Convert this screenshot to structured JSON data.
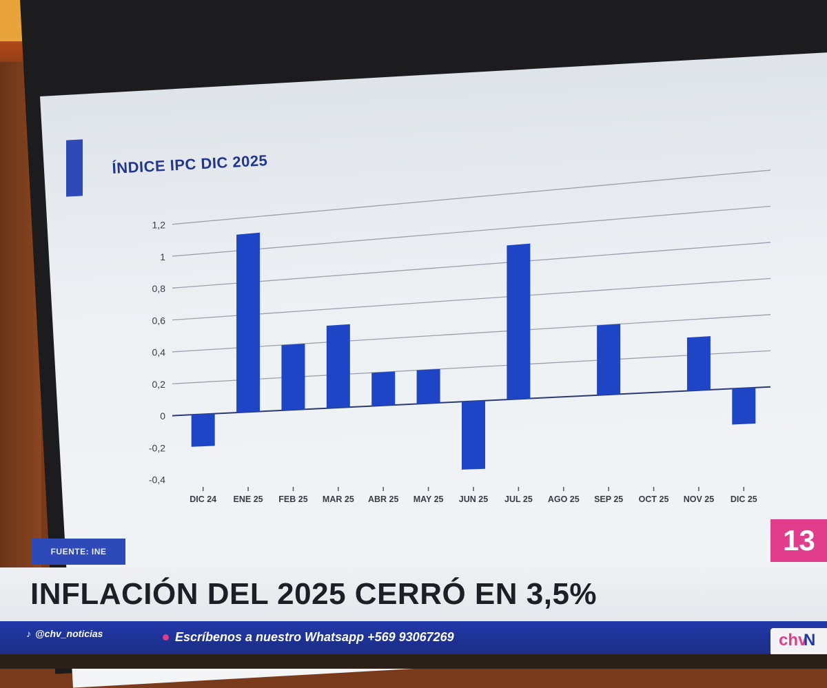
{
  "chart_data": {
    "type": "bar",
    "title": "ÍNDICE IPC DIC 2025",
    "categories": [
      "DIC 24",
      "ENE 25",
      "FEB 25",
      "MAR 25",
      "ABR 25",
      "MAY 25",
      "JUN 25",
      "JUL 25",
      "AGO 25",
      "SEP 25",
      "OCT 25",
      "NOV 25",
      "DIC 25"
    ],
    "values": [
      -0.2,
      1.1,
      0.4,
      0.5,
      0.2,
      0.2,
      -0.4,
      0.9,
      0.0,
      0.4,
      0.0,
      0.3,
      -0.2
    ],
    "y_ticks": [
      "1,2",
      "1",
      "0,8",
      "0,6",
      "0,4",
      "0,2",
      "0",
      "-0,2",
      "-0,4"
    ],
    "ylim": [
      -0.4,
      1.2
    ],
    "grid": true,
    "bar_color": "#1f45c7",
    "xlabel": "",
    "ylabel": ""
  },
  "source_label": "FUENTE: INE",
  "headline": "INFLACIÓN DEL 2025 CERRÓ EN 3,5%",
  "channel_number": "13",
  "ticker": {
    "handle": "@chv_noticias",
    "message": "Escríbenos a nuestro Whatsapp +569 93067269"
  },
  "logo": {
    "part1": "chv",
    "part2": "N"
  },
  "colors": {
    "accent": "#2e49b8",
    "pink": "#e23c8c",
    "ticker_bg": "#1b2d86"
  }
}
